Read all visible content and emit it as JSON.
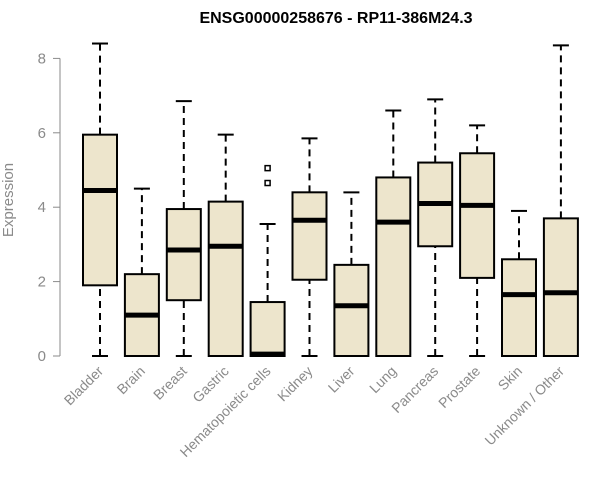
{
  "chart_data": {
    "type": "boxplot",
    "title": "ENSG00000258676 - RP11-386M24.3",
    "xlabel": "",
    "ylabel": "Expression",
    "ylim": [
      0,
      8.4
    ],
    "yticks": [
      0,
      2,
      4,
      6,
      8
    ],
    "box_fill": "#ede5cc",
    "box_stroke": "#000000",
    "categories": [
      "Bladder",
      "Brain",
      "Breast",
      "Gastric",
      "Hematopoietic cells",
      "Kidney",
      "Liver",
      "Lung",
      "Pancreas",
      "Prostate",
      "Skin",
      "Unknown / Other"
    ],
    "boxes": [
      {
        "name": "Bladder",
        "min": 0,
        "q1": 1.9,
        "median": 4.45,
        "q3": 5.95,
        "max": 8.4,
        "outliers": []
      },
      {
        "name": "Brain",
        "min": 0,
        "q1": 0,
        "median": 1.1,
        "q3": 2.2,
        "max": 4.5,
        "outliers": []
      },
      {
        "name": "Breast",
        "min": 0,
        "q1": 1.5,
        "median": 2.85,
        "q3": 3.95,
        "max": 6.85,
        "outliers": []
      },
      {
        "name": "Gastric",
        "min": 0,
        "q1": 0,
        "median": 2.95,
        "q3": 4.15,
        "max": 5.95,
        "outliers": []
      },
      {
        "name": "Hematopoietic cells",
        "min": 0,
        "q1": 0,
        "median": 0.05,
        "q3": 1.45,
        "max": 3.55,
        "outliers": [
          4.65,
          5.05
        ]
      },
      {
        "name": "Kidney",
        "min": 0,
        "q1": 2.05,
        "median": 3.65,
        "q3": 4.4,
        "max": 5.85,
        "outliers": []
      },
      {
        "name": "Liver",
        "min": 0,
        "q1": 0,
        "median": 1.35,
        "q3": 2.45,
        "max": 4.4,
        "outliers": []
      },
      {
        "name": "Lung",
        "min": 0,
        "q1": 0,
        "median": 3.6,
        "q3": 4.8,
        "max": 6.6,
        "outliers": []
      },
      {
        "name": "Pancreas",
        "min": 0,
        "q1": 2.95,
        "median": 4.1,
        "q3": 5.2,
        "max": 6.9,
        "outliers": []
      },
      {
        "name": "Prostate",
        "min": 0,
        "q1": 2.1,
        "median": 4.05,
        "q3": 5.45,
        "max": 6.2,
        "outliers": []
      },
      {
        "name": "Skin",
        "min": 0,
        "q1": 0,
        "median": 1.65,
        "q3": 2.6,
        "max": 3.9,
        "outliers": []
      },
      {
        "name": "Unknown / Other",
        "min": 0,
        "q1": 0,
        "median": 1.7,
        "q3": 3.7,
        "max": 8.35,
        "outliers": []
      }
    ]
  }
}
